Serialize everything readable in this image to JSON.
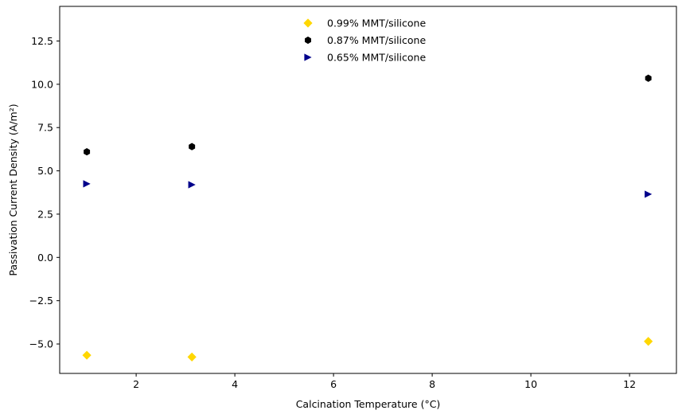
{
  "chart_data": {
    "type": "scatter",
    "title": "",
    "xlabel": "Calcination Temperature (°C)",
    "ylabel": "Passivation Current Density (A/m²)",
    "xlim": [
      0.45,
      12.95
    ],
    "ylim": [
      -6.7,
      14.5
    ],
    "xticks": [
      2,
      4,
      6,
      8,
      10,
      12
    ],
    "xtick_labels": [
      "2",
      "4",
      "6",
      "8",
      "10",
      "12"
    ],
    "yticks": [
      -5.0,
      -2.5,
      0.0,
      2.5,
      5.0,
      7.5,
      10.0,
      12.5
    ],
    "ytick_labels": [
      "−5.0",
      "−2.5",
      "0.0",
      "2.5",
      "5.0",
      "7.5",
      "10.0",
      "12.5"
    ],
    "grid": false,
    "legend_position": "top-center",
    "series": [
      {
        "name": "0.99% MMT/silicone",
        "marker": "diamond",
        "color": "#FFD700",
        "x": [
          1.0,
          3.13,
          12.38
        ],
        "y": [
          -5.65,
          -5.75,
          -4.85
        ]
      },
      {
        "name": "0.87% MMT/silicone",
        "marker": "hexagon",
        "color": "#000000",
        "x": [
          1.0,
          3.13,
          12.38
        ],
        "y": [
          6.1,
          6.4,
          10.35
        ]
      },
      {
        "name": "0.65% MMT/silicone",
        "marker": "triangle-right",
        "color": "#00008B",
        "x": [
          1.0,
          3.13,
          12.38
        ],
        "y": [
          4.25,
          4.2,
          3.65
        ]
      }
    ]
  }
}
